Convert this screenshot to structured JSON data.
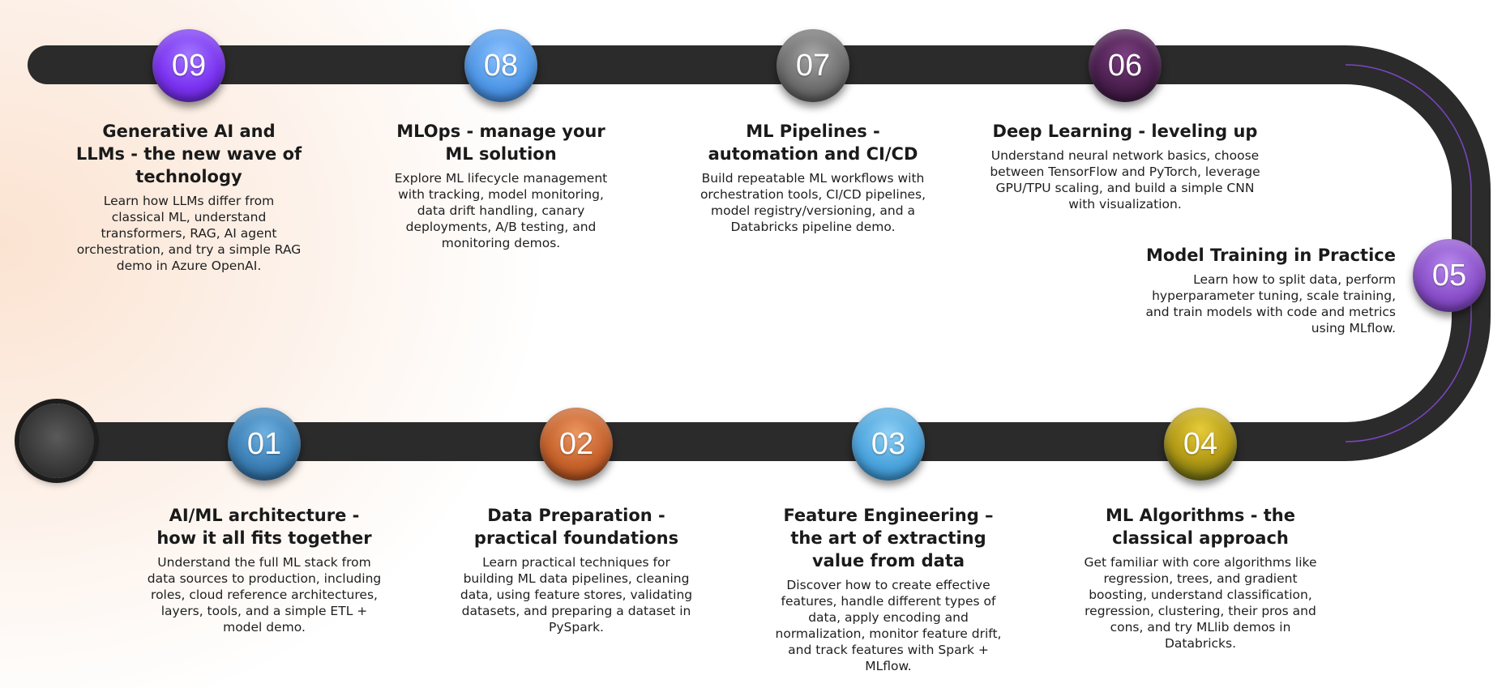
{
  "steps": [
    {
      "num": "01",
      "title": "AI/ML architecture - how it all fits together",
      "desc": "Understand the full ML stack from data sources to production, including roles, cloud reference architectures, layers, tools, and a simple ETL + model demo.",
      "color": "#3b7fb5"
    },
    {
      "num": "02",
      "title": "Data Preparation - practical foundations",
      "desc": "Learn practical techniques for building ML data pipelines, cleaning data, using feature stores, validating datasets, and preparing a dataset in PySpark.",
      "color": "#c4602a"
    },
    {
      "num": "03",
      "title": "Feature Engineering – the art of extracting value from data",
      "desc": "Discover how to create effective features, handle different types of data, apply encoding and normalization, monitor feature drift, and track features with Spark + MLflow.",
      "color": "#4aa3dc"
    },
    {
      "num": "04",
      "title": "ML Algorithms - the classical approach",
      "desc": "Get familiar with core algorithms like regression, trees, and gradient boosting, understand classification, regression, clustering, their pros and cons, and try MLlib demos in Databricks.",
      "color": "#b39a16"
    },
    {
      "num": "05",
      "title": "Model Training in Practice",
      "desc": "Learn how to split data, perform hyperparameter tuning, scale training, and train models with code and metrics using MLflow.",
      "color": "#8a4fc9"
    },
    {
      "num": "06",
      "title": "Deep Learning - leveling up",
      "desc": "Understand neural network basics, choose between TensorFlow and PyTorch, leverage GPU/TPU scaling, and build a simple CNN with visualization.",
      "color": "#4a1f4e"
    },
    {
      "num": "07",
      "title": "ML Pipelines - automation and CI/CD",
      "desc": "Build repeatable ML workflows with orchestration tools, CI/CD pipelines, model registry/versioning, and a Databricks pipeline demo.",
      "color": "#6e6e6e"
    },
    {
      "num": "08",
      "title": "MLOps - manage your ML solution",
      "desc": "Explore ML lifecycle management with tracking, model monitoring, data drift handling, canary deployments, A/B testing, and monitoring demos.",
      "color": "#4f97e6"
    },
    {
      "num": "09",
      "title": "Generative AI and LLMs - the new wave of technology",
      "desc": "Learn how LLMs differ from classical ML, understand transformers, RAG, AI agent orchestration, and try a simple RAG demo in Azure OpenAI.",
      "color": "#7a32f0"
    }
  ]
}
